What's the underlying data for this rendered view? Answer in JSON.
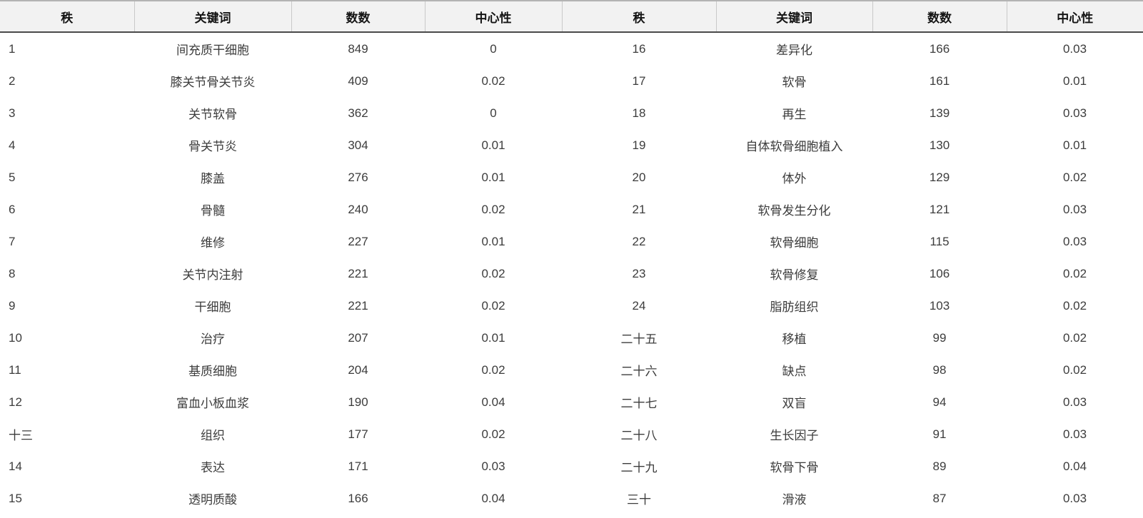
{
  "table": {
    "type": "table",
    "description_semantic": "keyword co-occurrence ranking table, two column-groups side by side",
    "headers": [
      "秩",
      "关键词",
      "数数",
      "中心性",
      "秩",
      "关键词",
      "数数",
      "中心性"
    ],
    "rows": [
      [
        "1",
        "间充质干细胞",
        "849",
        "0",
        "16",
        "差异化",
        "166",
        "0.03"
      ],
      [
        "2",
        "膝关节骨关节炎",
        "409",
        "0.02",
        "17",
        "软骨",
        "161",
        "0.01"
      ],
      [
        "3",
        "关节软骨",
        "362",
        "0",
        "18",
        "再生",
        "139",
        "0.03"
      ],
      [
        "4",
        "骨关节炎",
        "304",
        "0.01",
        "19",
        "自体软骨细胞植入",
        "130",
        "0.01"
      ],
      [
        "5",
        "膝盖",
        "276",
        "0.01",
        "20",
        "体外",
        "129",
        "0.02"
      ],
      [
        "6",
        "骨髓",
        "240",
        "0.02",
        "21",
        "软骨发生分化",
        "121",
        "0.03"
      ],
      [
        "7",
        "维修",
        "227",
        "0.01",
        "22",
        "软骨细胞",
        "115",
        "0.03"
      ],
      [
        "8",
        "关节内注射",
        "221",
        "0.02",
        "23",
        "软骨修复",
        "106",
        "0.02"
      ],
      [
        "9",
        "干细胞",
        "221",
        "0.02",
        "24",
        "脂肪组织",
        "103",
        "0.02"
      ],
      [
        "10",
        "治疗",
        "207",
        "0.01",
        "二十五",
        "移植",
        "99",
        "0.02"
      ],
      [
        "11",
        "基质细胞",
        "204",
        "0.02",
        "二十六",
        "缺点",
        "98",
        "0.02"
      ],
      [
        "12",
        "富血小板血浆",
        "190",
        "0.04",
        "二十七",
        "双盲",
        "94",
        "0.03"
      ],
      [
        "十三",
        "组织",
        "177",
        "0.02",
        "二十八",
        "生长因子",
        "91",
        "0.03"
      ],
      [
        "14",
        "表达",
        "171",
        "0.03",
        "二十九",
        "软骨下骨",
        "89",
        "0.04"
      ],
      [
        "15",
        "透明质酸",
        "166",
        "0.04",
        "三十",
        "滑液",
        "87",
        "0.03"
      ]
    ],
    "colors": {
      "header_background": "#f2f2f2",
      "header_top_border": "#b3b3b3",
      "header_bottom_border": "#4a4a4a",
      "header_divider": "#c9c9c9",
      "header_text": "#141414",
      "body_text": "#3c3c3c",
      "page_background": "#ffffff"
    }
  }
}
